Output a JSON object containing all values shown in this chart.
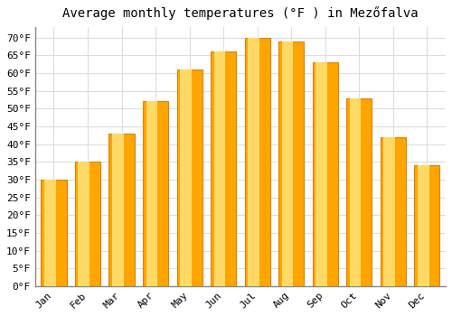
{
  "title": "Average monthly temperatures (°F ) in Mezőfalva",
  "months": [
    "Jan",
    "Feb",
    "Mar",
    "Apr",
    "May",
    "Jun",
    "Jul",
    "Aug",
    "Sep",
    "Oct",
    "Nov",
    "Dec"
  ],
  "values": [
    30,
    35,
    43,
    52,
    61,
    66,
    70,
    69,
    63,
    53,
    42,
    34
  ],
  "bar_color_main": "#FFA500",
  "bar_color_light": "#FFD966",
  "bar_edge_color": "#E08000",
  "background_color": "#FFFFFF",
  "plot_bg_color": "#FFFFFF",
  "ytick_labels": [
    "0°F",
    "5°F",
    "10°F",
    "15°F",
    "20°F",
    "25°F",
    "30°F",
    "35°F",
    "40°F",
    "45°F",
    "50°F",
    "55°F",
    "60°F",
    "65°F",
    "70°F"
  ],
  "ytick_values": [
    0,
    5,
    10,
    15,
    20,
    25,
    30,
    35,
    40,
    45,
    50,
    55,
    60,
    65,
    70
  ],
  "ylim": [
    0,
    73
  ],
  "grid_color": "#DDDDDD",
  "title_fontsize": 10,
  "tick_fontsize": 8,
  "font_family": "monospace",
  "bar_width": 0.75
}
